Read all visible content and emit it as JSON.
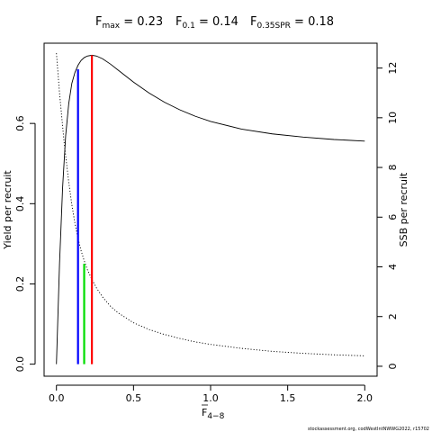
{
  "chart_data": {
    "type": "line",
    "title_parts": [
      {
        "main": "F",
        "sub": "max",
        "eq": " = 0.23"
      },
      {
        "main": "F",
        "sub": "0.1",
        "eq": " = 0.14"
      },
      {
        "main": "F",
        "sub": "0.35SPR",
        "eq": " = 0.18"
      }
    ],
    "xlabel": {
      "main": "F",
      "sub": "4−8"
    },
    "ylabel_left": "Yield per recruit",
    "ylabel_right": "SSB per recruit",
    "credit": "stockassessment.org, codWestIntNWWG2022, r15702",
    "xlim": [
      -0.08,
      2.08
    ],
    "ylim_left": [
      -0.03,
      0.8
    ],
    "ylim_right": [
      -0.4,
      13.0
    ],
    "x_ticks": [
      {
        "value": 0,
        "label": "0.0"
      },
      {
        "value": 0.5,
        "label": "0.5"
      },
      {
        "value": 1.0,
        "label": "1.0"
      },
      {
        "value": 1.5,
        "label": "1.5"
      },
      {
        "value": 2.0,
        "label": "2.0"
      }
    ],
    "y_left_ticks": [
      {
        "value": 0.0,
        "label": "0.0"
      },
      {
        "value": 0.2,
        "label": "0.2"
      },
      {
        "value": 0.4,
        "label": "0.4"
      },
      {
        "value": 0.6,
        "label": "0.6"
      }
    ],
    "y_right_ticks": [
      {
        "value": 0,
        "label": "0"
      },
      {
        "value": 2,
        "label": "2"
      },
      {
        "value": 4,
        "label": "4"
      },
      {
        "value": 6,
        "label": "6"
      },
      {
        "value": 8,
        "label": "8"
      },
      {
        "value": 10,
        "label": "10"
      },
      {
        "value": 12,
        "label": "12"
      }
    ],
    "series": [
      {
        "axis": "left",
        "style": "solid",
        "color": "#000000",
        "x": [
          0,
          0.02,
          0.04,
          0.06,
          0.08,
          0.1,
          0.12,
          0.14,
          0.16,
          0.18,
          0.2,
          0.23,
          0.26,
          0.3,
          0.35,
          0.4,
          0.5,
          0.6,
          0.7,
          0.8,
          0.9,
          1.0,
          1.2,
          1.4,
          1.6,
          1.8,
          2.0
        ],
        "y": [
          0.0,
          0.25,
          0.44,
          0.57,
          0.65,
          0.7,
          0.727,
          0.745,
          0.757,
          0.764,
          0.768,
          0.77,
          0.768,
          0.761,
          0.748,
          0.733,
          0.703,
          0.676,
          0.653,
          0.634,
          0.618,
          0.605,
          0.586,
          0.574,
          0.566,
          0.56,
          0.556
        ]
      },
      {
        "axis": "right",
        "style": "dotted",
        "color": "#000000",
        "x": [
          0,
          0.02,
          0.05,
          0.08,
          0.1,
          0.12,
          0.14,
          0.16,
          0.18,
          0.2,
          0.23,
          0.26,
          0.3,
          0.35,
          0.4,
          0.5,
          0.6,
          0.7,
          0.8,
          0.9,
          1.0,
          1.2,
          1.4,
          1.6,
          1.8,
          2.0
        ],
        "y": [
          12.6,
          11.0,
          9.0,
          7.4,
          6.5,
          5.75,
          5.15,
          4.65,
          4.25,
          3.9,
          3.5,
          3.15,
          2.78,
          2.42,
          2.15,
          1.75,
          1.48,
          1.28,
          1.12,
          0.98,
          0.88,
          0.72,
          0.6,
          0.52,
          0.46,
          0.42
        ]
      }
    ],
    "reference_lines": [
      {
        "name": "F0.1",
        "x": 0.14,
        "y_top_left": 0.735,
        "color": "#0000ff"
      },
      {
        "name": "F0.35SPR",
        "x": 0.18,
        "y_top_left": 0.25,
        "color": "#00dd00"
      },
      {
        "name": "Fmax",
        "x": 0.23,
        "y_top_left": 0.77,
        "color": "#ff0000"
      }
    ],
    "grid": false,
    "legend": "none"
  }
}
